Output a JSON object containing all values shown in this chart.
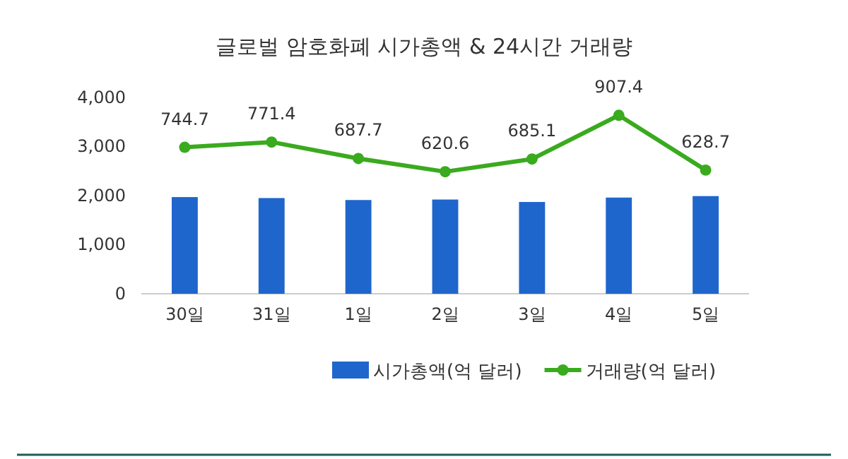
{
  "chart_data": {
    "type": "bar",
    "title": "글로벌 암호화폐 시가총액 & 24시간 거래량",
    "categories": [
      "30일",
      "31일",
      "1일",
      "2일",
      "3일",
      "4일",
      "5일"
    ],
    "series": [
      {
        "name": "시가총액(억 달러)",
        "color": "#1f66cc",
        "values": [
          1970,
          1950,
          1910,
          1920,
          1870,
          1960,
          1990
        ]
      },
      {
        "name": "거래량(억 달러)",
        "type": "line",
        "axis": "y2",
        "color": "#3aaa1e",
        "values": [
          744.7,
          771.4,
          687.7,
          620.6,
          685.1,
          907.4,
          628.7
        ],
        "value_labels": [
          "744.7",
          "771.4",
          "687.7",
          "620.6",
          "685.1",
          "907.4",
          "628.7"
        ]
      }
    ],
    "ylim": [
      0,
      4000
    ],
    "yticks": [
      0,
      {
        "value": 1000,
        "label": "1,000"
      },
      {
        "value": 2000,
        "label": "2,000"
      },
      {
        "value": 3000,
        "label": "3,000"
      },
      {
        "value": 4000,
        "label": "4,000"
      }
    ],
    "legend": "bottom",
    "marker": "circle",
    "line_style": "solid",
    "grid": false
  }
}
